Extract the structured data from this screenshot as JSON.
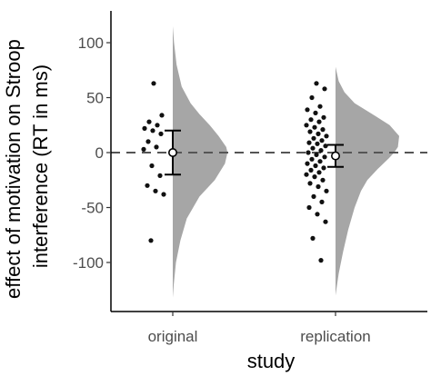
{
  "chart_data": {
    "type": "raincloud",
    "title": "",
    "xlabel": "study",
    "ylabel_lines": [
      "effect of motivation on Stroop",
      "interference (RT in ms)"
    ],
    "categories": [
      "original",
      "replication"
    ],
    "ylim": [
      -130,
      125
    ],
    "yticks": [
      100,
      50,
      0,
      -50,
      -100
    ],
    "reference_line": 0,
    "grid": false,
    "colors": {
      "density": "#a6a6a6",
      "points": "#111111",
      "summary": "#000000",
      "mean_fill": "#ffffff",
      "reference": "#555555"
    },
    "series": [
      {
        "category": "original",
        "mean": 0,
        "ci": [
          -20,
          20
        ],
        "points": [
          63,
          34,
          28,
          25,
          22,
          20,
          17,
          10,
          5,
          3,
          -12,
          -21,
          -30,
          -35,
          -38,
          -80
        ],
        "density": {
          "y": [
            115,
            100,
            80,
            60,
            45,
            35,
            25,
            15,
            5,
            0,
            -10,
            -25,
            -40,
            -60,
            -80,
            -100,
            -120,
            -132
          ],
          "d": [
            0.0,
            0.02,
            0.06,
            0.14,
            0.28,
            0.42,
            0.58,
            0.72,
            0.84,
            0.86,
            0.82,
            0.66,
            0.42,
            0.22,
            0.12,
            0.05,
            0.015,
            0.0
          ]
        }
      },
      {
        "category": "replication",
        "mean": -3,
        "ci": [
          -13,
          7
        ],
        "points": [
          63,
          58,
          50,
          42,
          39,
          36,
          32,
          30,
          28,
          25,
          23,
          21,
          19,
          17,
          15,
          13,
          11,
          9,
          8,
          6,
          4,
          2,
          0,
          -2,
          -4,
          -6,
          -8,
          -10,
          -12,
          -14,
          -16,
          -18,
          -20,
          -22,
          -25,
          -28,
          -31,
          -35,
          -40,
          -45,
          -50,
          -56,
          -63,
          -78,
          -98
        ],
        "density": {
          "y": [
            78,
            65,
            55,
            45,
            35,
            25,
            15,
            5,
            0,
            -5,
            -15,
            -25,
            -35,
            -50,
            -70,
            -90,
            -110,
            -130
          ],
          "d": [
            0.0,
            0.05,
            0.14,
            0.3,
            0.58,
            0.85,
            1.0,
            0.98,
            0.92,
            0.84,
            0.66,
            0.5,
            0.4,
            0.3,
            0.2,
            0.12,
            0.05,
            0.0
          ]
        }
      }
    ]
  }
}
